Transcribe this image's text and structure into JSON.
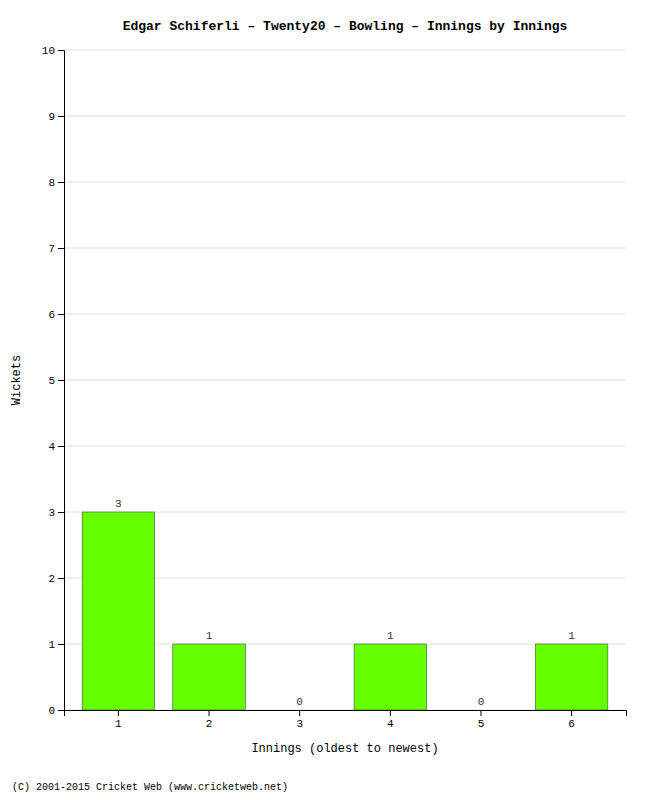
{
  "chart_data": {
    "type": "bar",
    "title": "Edgar Schiferli – Twenty20 – Bowling – Innings by Innings",
    "x_label": "Innings (oldest to newest)",
    "y_label": "Wickets",
    "categories": [
      "1",
      "2",
      "3",
      "4",
      "5",
      "6"
    ],
    "values": [
      3,
      1,
      0,
      1,
      0,
      1
    ],
    "color": "#66ff00",
    "ylim": [
      0,
      10
    ],
    "yticks": [
      0,
      1,
      2,
      3,
      4,
      5,
      6,
      7,
      8,
      9,
      10
    ],
    "grid": true,
    "data_labels": true,
    "annotations": [
      "(C) 2001-2015 Cricket Web (www.cricketweb.net)"
    ]
  }
}
